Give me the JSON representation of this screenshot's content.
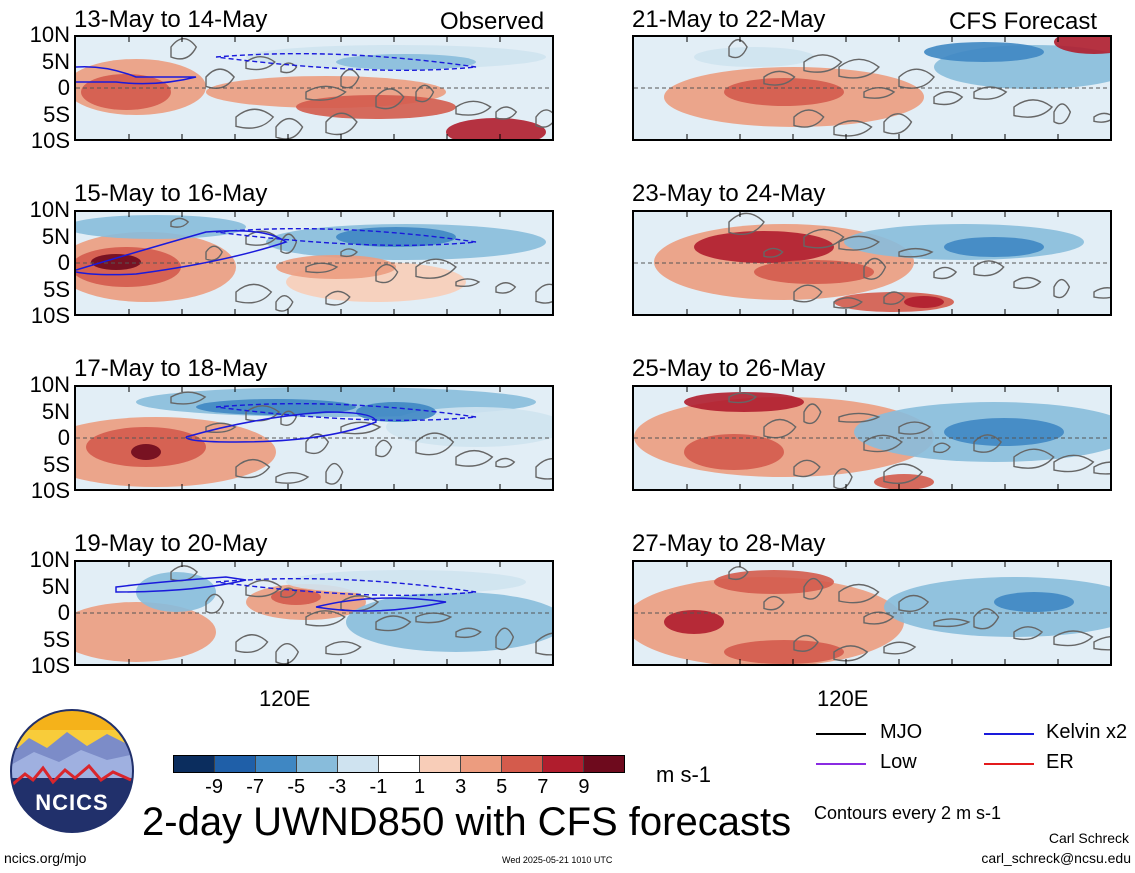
{
  "chart_data": {
    "type": "heatmap",
    "variable": "UWND850",
    "title": "2-day UWND850 with CFS forecasts",
    "units": "m s-1",
    "lat_ticks": [
      "10N",
      "5N",
      "0",
      "5S",
      "10S"
    ],
    "lon_tick_label": "120E",
    "colorbar": {
      "ticks": [
        "-9",
        "-7",
        "-5",
        "-3",
        "-1",
        "1",
        "3",
        "5",
        "7",
        "9"
      ],
      "colors": [
        "#0b2d5e",
        "#1f5fa8",
        "#3f87c3",
        "#88bcdb",
        "#cfe3f0",
        "#ffffff",
        "#f8cdb8",
        "#ec9c7f",
        "#d45b4c",
        "#b01d2d",
        "#6e0a1d"
      ]
    },
    "panels": [
      {
        "period": "13-May to 14-May",
        "source": "Observed",
        "tag": "Observed"
      },
      {
        "period": "15-May to 16-May",
        "source": "Observed"
      },
      {
        "period": "17-May to 18-May",
        "source": "Observed"
      },
      {
        "period": "19-May to 20-May",
        "source": "Observed"
      },
      {
        "period": "21-May to 22-May",
        "source": "CFS Forecast",
        "tag": "CFS Forecast"
      },
      {
        "period": "23-May to 24-May",
        "source": "CFS Forecast"
      },
      {
        "period": "25-May to 26-May",
        "source": "CFS Forecast"
      },
      {
        "period": "27-May to 28-May",
        "source": "CFS Forecast"
      }
    ],
    "legend": [
      {
        "label": "MJO",
        "color": "#000000"
      },
      {
        "label": "Low",
        "color": "#8a2be2"
      },
      {
        "label": "Kelvin x2",
        "color": "#1a1adb"
      },
      {
        "label": "ER",
        "color": "#e31a1c"
      }
    ],
    "contour_note": "Contours every 2 m s-1"
  },
  "footer": {
    "logo_text": "NCICS",
    "url": "ncics.org/mjo",
    "timestamp": "Wed 2025-05-21 1010 UTC",
    "author": "Carl Schreck",
    "email": "carl_schreck@ncsu.edu"
  }
}
